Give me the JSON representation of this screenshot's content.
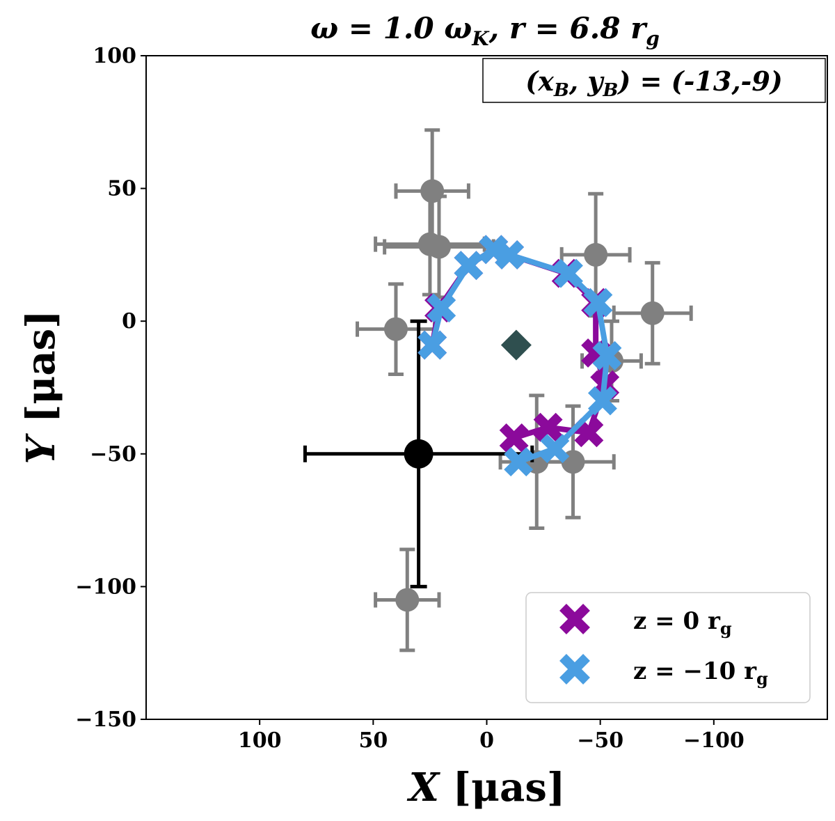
{
  "chart_data": {
    "type": "scatter",
    "title": "ω = 1.0 ω_K, r = 6.8 r_g",
    "title_parts": {
      "omega": "ω = 1.0 ω",
      "omega_sub": "K",
      "r": ", r = 6.8 r",
      "r_sub": "g"
    },
    "xlabel": "X [μas]",
    "ylabel": "Y [μas]",
    "xlabel_parts": {
      "var": "X",
      "unit": " [μas]"
    },
    "ylabel_parts": {
      "var": "Y",
      "unit": " [μas]"
    },
    "xlim": [
      150,
      -150
    ],
    "ylim": [
      -150,
      100
    ],
    "x_reversed": true,
    "x_ticks": [
      100,
      50,
      0,
      -50,
      -100
    ],
    "x_tick_labels": [
      "100",
      "50",
      "0",
      "−50",
      "−100"
    ],
    "y_ticks": [
      100,
      50,
      0,
      -50,
      -100,
      -150
    ],
    "y_tick_labels": [
      "100",
      "50",
      "0",
      "−50",
      "−100",
      "−150"
    ],
    "grid": false,
    "annotation": "(x_B, y_B) = (-13,-9)",
    "annotation_parts": {
      "open": "(x",
      "sub1": "B",
      "mid": ", y",
      "sub2": "B",
      "close": ") = (-13,-9)"
    },
    "observations": [
      {
        "x": 24,
        "y": 49,
        "xerr": 16,
        "yerr": 23
      },
      {
        "x": 25,
        "y": 29,
        "xerr": 24,
        "yerr": 19
      },
      {
        "x": 21,
        "y": 28,
        "xerr": 24,
        "yerr": 19
      },
      {
        "x": 40,
        "y": -3,
        "xerr": 17,
        "yerr": 17
      },
      {
        "x": 35,
        "y": -105,
        "xerr": 14,
        "yerr": 19
      },
      {
        "x": -48,
        "y": 25,
        "xerr": 15,
        "yerr": 23
      },
      {
        "x": -73,
        "y": 3,
        "xerr": 17,
        "yerr": 19
      },
      {
        "x": -55,
        "y": -15,
        "xerr": 13,
        "yerr": 15
      },
      {
        "x": -38,
        "y": -53,
        "xerr": 18,
        "yerr": 21
      },
      {
        "x": -22,
        "y": -53,
        "xerr": 16,
        "yerr": 25
      }
    ],
    "reference_point": {
      "x": 30,
      "y": -50,
      "xerr": 50,
      "yerr": 50
    },
    "center_marker": {
      "x": -13,
      "y": -9
    },
    "series": [
      {
        "name": "z = 0 r_g",
        "color": "#8b0a9b",
        "x": [
          24,
          21,
          8,
          -3,
          -10,
          -35,
          -48,
          -48,
          -52,
          -45,
          -27,
          -12
        ],
        "y": [
          -9,
          5,
          21,
          27,
          25,
          18,
          7,
          -12,
          -24,
          -42,
          -40,
          -44
        ]
      },
      {
        "name": "z = −10 r_g",
        "color": "#4a9ee2",
        "x": [
          24,
          20,
          8,
          -3,
          -10,
          -36,
          -49,
          -53,
          -51,
          -30,
          -14
        ],
        "y": [
          -9,
          5,
          21,
          27,
          25,
          18,
          7,
          -13,
          -30,
          -48,
          -53
        ]
      }
    ],
    "legend": [
      {
        "prefix": "z = 0 r",
        "sub": "g",
        "color": "#8b0a9b"
      },
      {
        "prefix": "z = −10 r",
        "sub": "g",
        "color": "#4a9ee2"
      }
    ],
    "legend_position": "lower-right",
    "colors": {
      "observations": "#808080",
      "reference": "#000000",
      "center": "#2f4f4f",
      "axes": "#000000"
    }
  }
}
